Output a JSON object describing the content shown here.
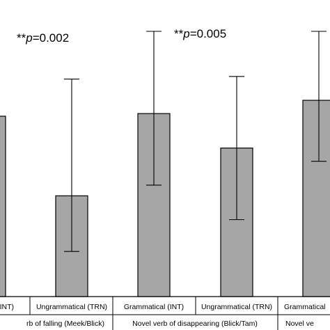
{
  "chart_data": {
    "type": "bar",
    "title": "",
    "xlabel": "",
    "ylabel": "",
    "bar_color": "#a6a6a6",
    "categories": [
      "(INT)",
      "Ungrammatical (TRN)",
      "Grammatical (INT)",
      "Ungrammatical (TRN)",
      "Grammatical"
    ],
    "groups": [
      "rb of falling (Meek/Blick)",
      "Novel verb of disappearing (Blick/Tam)",
      "Novel ve"
    ],
    "values": [
      0.68,
      0.38,
      0.69,
      0.56,
      0.74
    ],
    "error_upper": [
      null,
      0.82,
      1.0,
      0.83,
      1.0
    ],
    "error_lower": [
      null,
      0.17,
      0.42,
      0.29,
      0.51
    ],
    "ylim": [
      0,
      1.0
    ],
    "annotations": [
      {
        "stars": "**",
        "p": "p",
        "value": "=0.002"
      },
      {
        "stars": "**",
        "p": "p",
        "value": "=0.005"
      }
    ]
  }
}
